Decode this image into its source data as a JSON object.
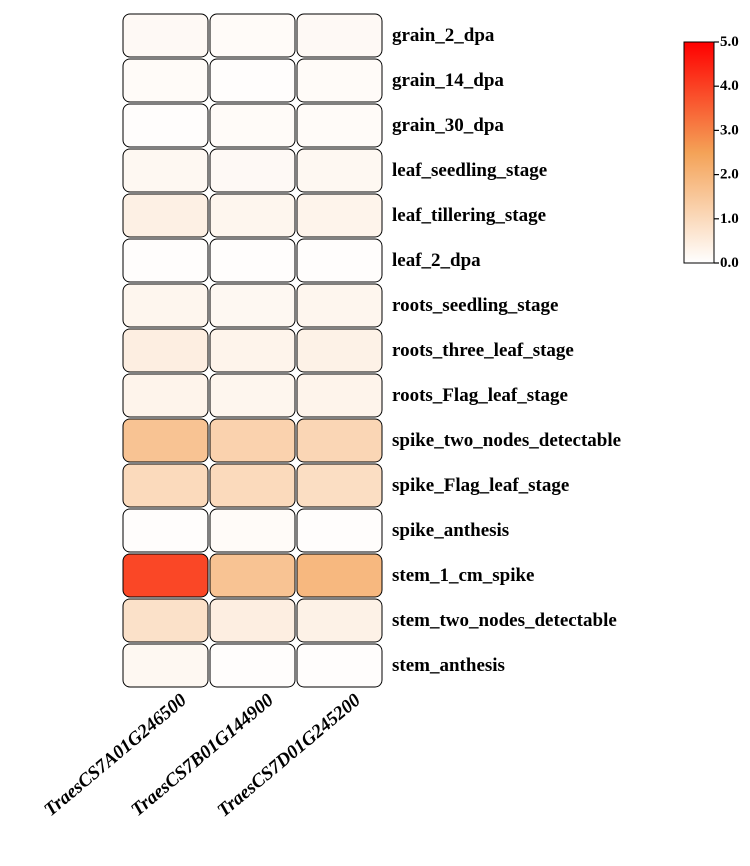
{
  "chart_data": {
    "type": "heatmap",
    "rows": [
      "grain_2_dpa",
      "grain_14_dpa",
      "grain_30_dpa",
      "leaf_seedling_stage",
      "leaf_tillering_stage",
      "leaf_2_dpa",
      "roots_seedling_stage",
      "roots_three_leaf_stage",
      "roots_Flag_leaf_stage",
      "spike_two_nodes_detectable",
      "spike_Flag_leaf_stage",
      "spike_anthesis",
      "stem_1_cm_spike",
      "stem_two_nodes_detectable",
      "stem_anthesis"
    ],
    "columns": [
      "TraesCS7A01G246500",
      "TraesCS7B01G144900",
      "TraesCS7D01G245200"
    ],
    "values": [
      [
        0.15,
        0.1,
        0.15
      ],
      [
        0.1,
        0.05,
        0.1
      ],
      [
        0.05,
        0.1,
        0.1
      ],
      [
        0.2,
        0.15,
        0.2
      ],
      [
        0.4,
        0.25,
        0.3
      ],
      [
        0.05,
        0.05,
        0.05
      ],
      [
        0.25,
        0.2,
        0.25
      ],
      [
        0.45,
        0.3,
        0.35
      ],
      [
        0.3,
        0.25,
        0.3
      ],
      [
        1.6,
        1.2,
        1.1
      ],
      [
        1.0,
        1.0,
        0.9
      ],
      [
        0.05,
        0.1,
        0.05
      ],
      [
        3.9,
        1.6,
        1.9
      ],
      [
        0.8,
        0.45,
        0.35
      ],
      [
        0.2,
        0.05,
        0.05
      ]
    ],
    "legend": {
      "min": 0.0,
      "max": 5.0,
      "ticks": [
        "0.0",
        "1.0",
        "2.0",
        "3.0",
        "4.0",
        "5.0"
      ],
      "placement": "top-right"
    },
    "colors": [
      "#ffffff",
      "#f4a257",
      "#ff0000"
    ]
  }
}
